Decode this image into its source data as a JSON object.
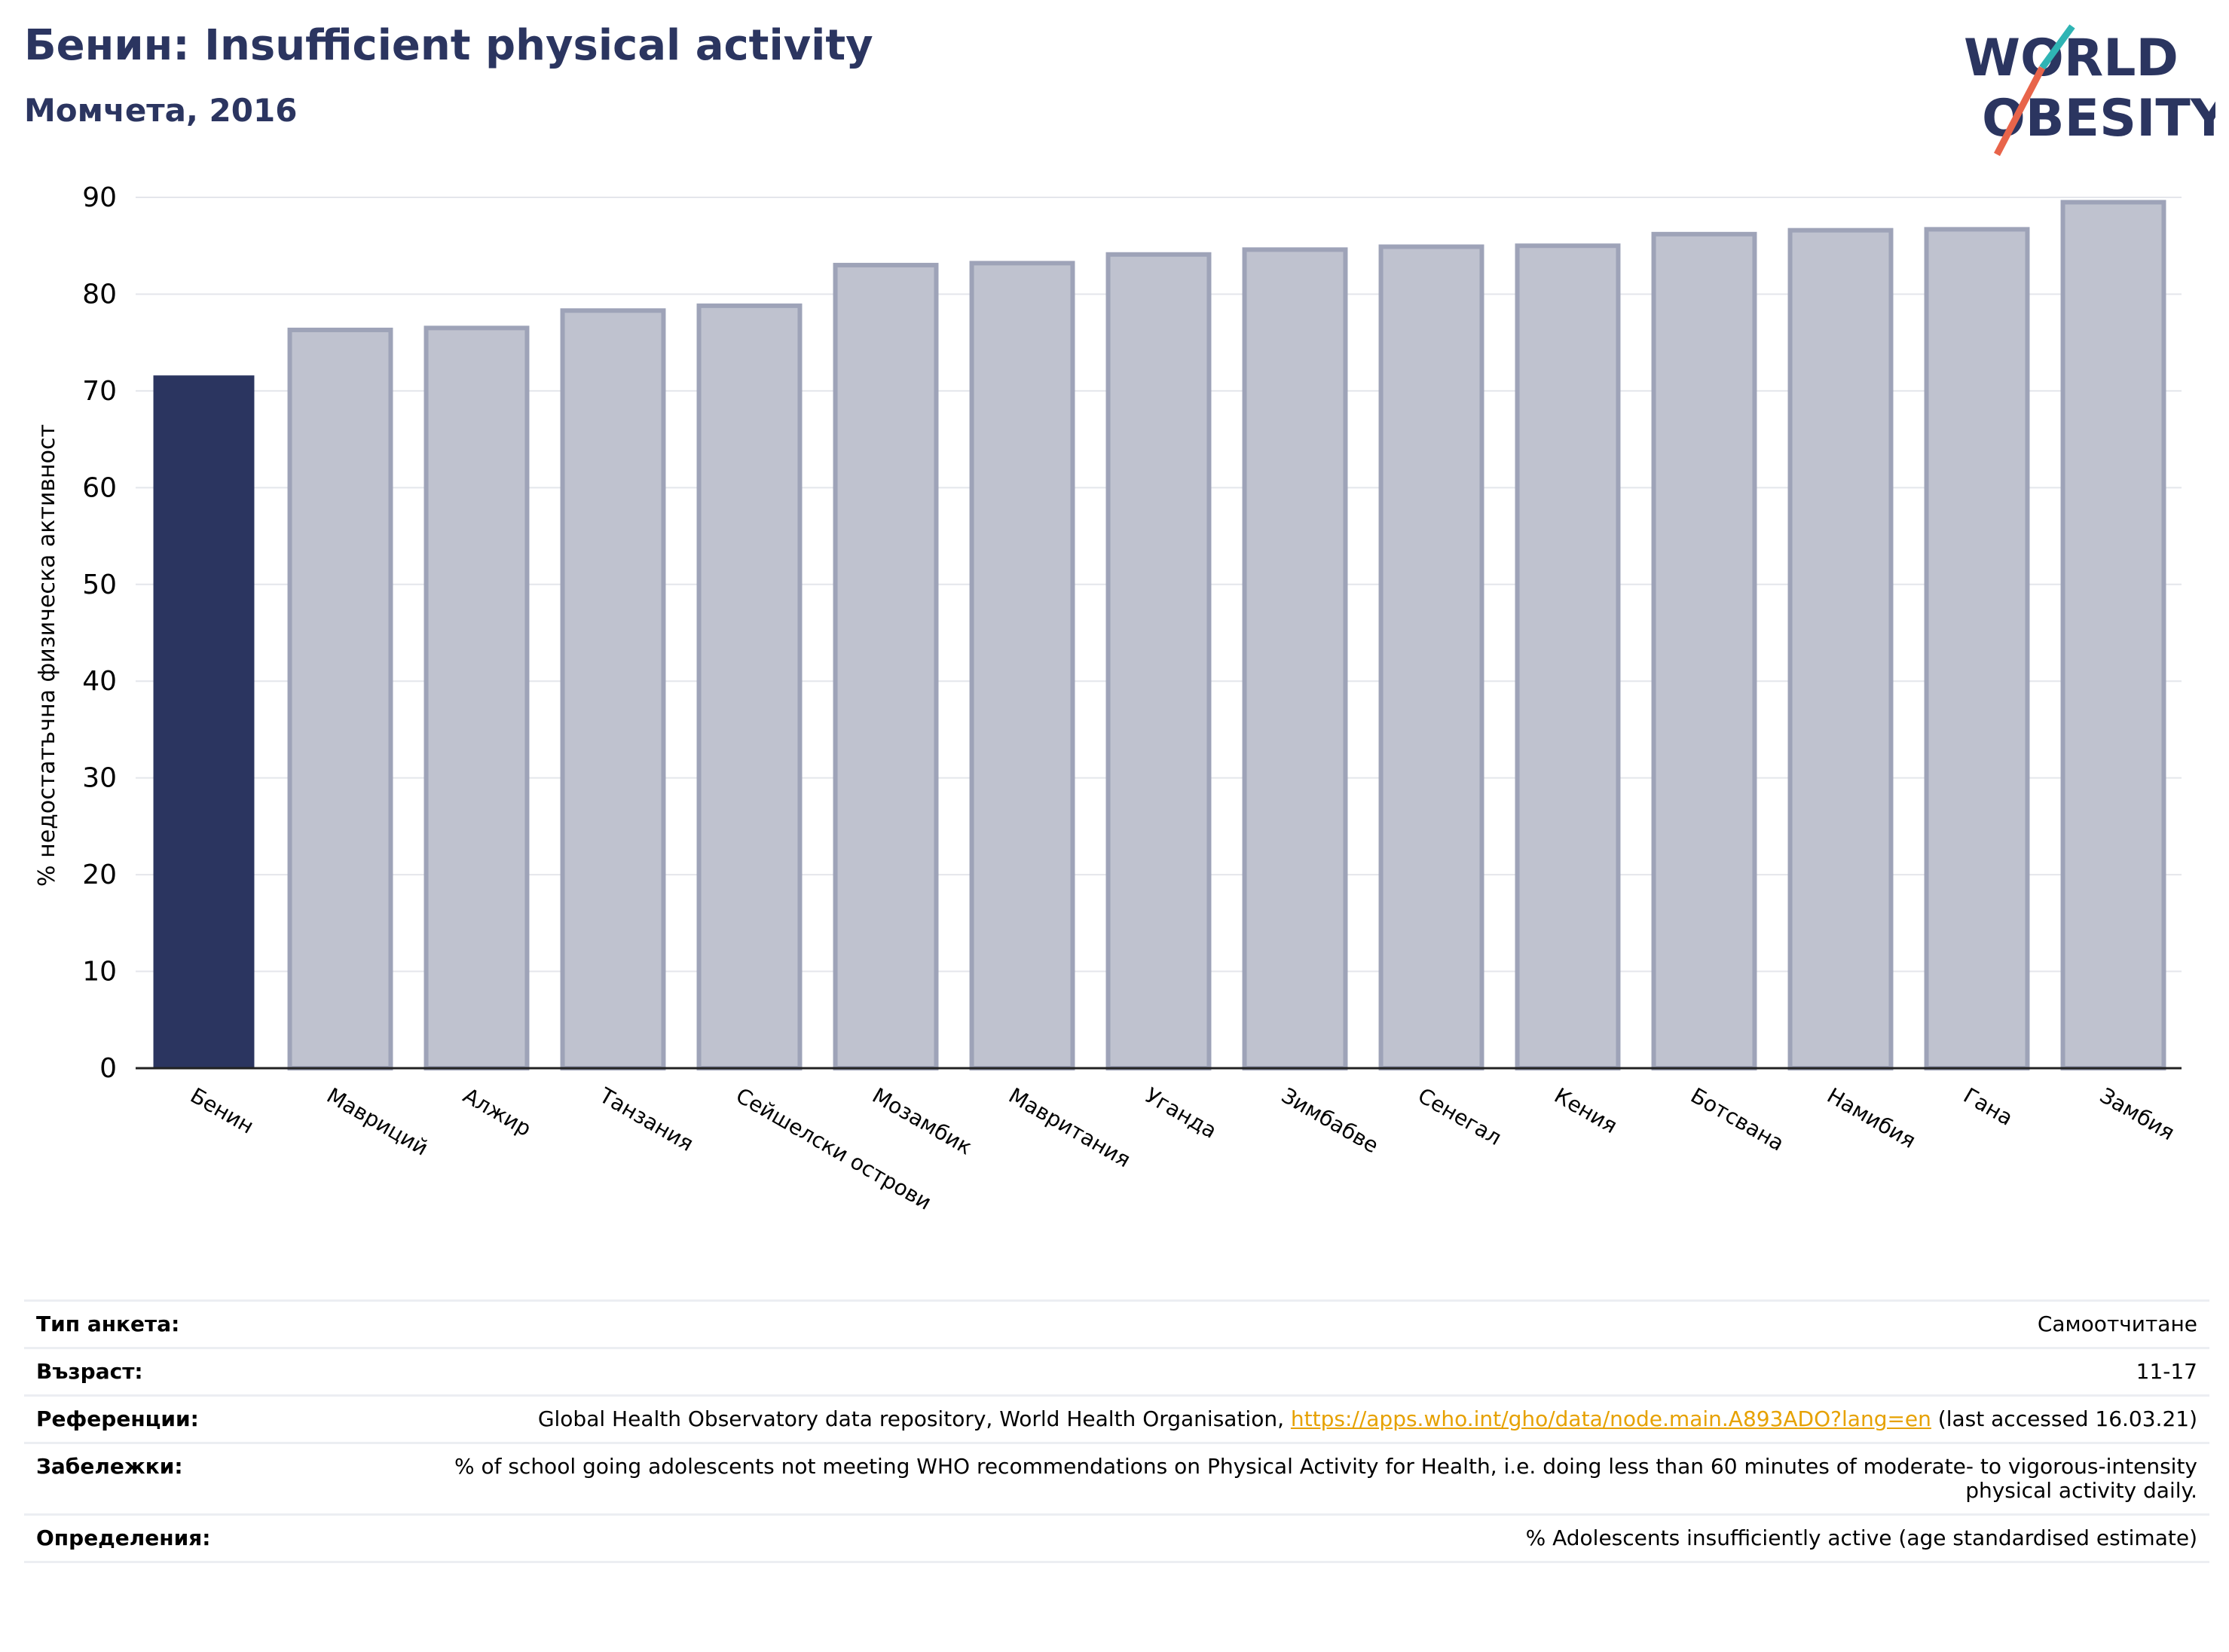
{
  "header": {
    "title": "Бенин: Insufficient physical activity",
    "subtitle": "Момчета, 2016"
  },
  "logo": {
    "line1": "WORLD",
    "line2": "OBESITY",
    "text_color": "#2b3560",
    "accent_teal": "#2fb4b4",
    "accent_orange": "#e8644a"
  },
  "colors": {
    "highlight": "#2b3560",
    "bar": "#bfc2cf",
    "bar_edge": "#9ea3b8"
  },
  "chart_data": {
    "type": "bar",
    "ylabel": "% недостатъчна физическа активност",
    "ylim": [
      0,
      90
    ],
    "yticks": [
      0,
      10,
      20,
      30,
      40,
      50,
      60,
      70,
      80,
      90
    ],
    "grid": true,
    "highlight_category": "Бенин",
    "categories": [
      "Бенин",
      "Мавриций",
      "Алжир",
      "Танзания",
      "Сейшелски острови",
      "Мозамбик",
      "Мавритания",
      "Уганда",
      "Зимбабве",
      "Сенегал",
      "Кения",
      "Ботсвана",
      "Намибия",
      "Гана",
      "Замбия"
    ],
    "values": [
      71.6,
      76.3,
      76.5,
      78.3,
      78.8,
      83.0,
      83.2,
      84.1,
      84.6,
      84.9,
      85.0,
      86.2,
      86.6,
      86.7,
      89.5
    ]
  },
  "meta": {
    "rows": [
      {
        "key": "Тип анкета:",
        "value": "Самоотчитане"
      },
      {
        "key": "Възраст:",
        "value": "11-17"
      },
      {
        "key": "Референции:",
        "value_prefix": "Global Health Observatory data repository, World Health Organisation, ",
        "link": "https://apps.who.int/gho/data/node.main.A893ADO?lang=en",
        "value_suffix": " (last accessed 16.03.21)"
      },
      {
        "key": "Забележки:",
        "value": "% of school going adolescents not meeting WHO recommendations on Physical Activity for Health, i.e. doing less than 60 minutes of moderate- to vigorous-intensity physical activity daily."
      },
      {
        "key": "Определения:",
        "value": "% Adolescents insufficiently active (age standardised estimate)"
      }
    ]
  }
}
